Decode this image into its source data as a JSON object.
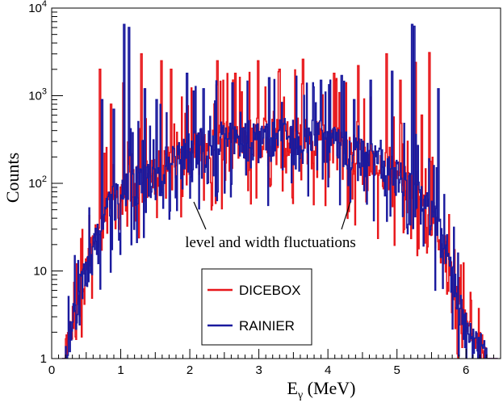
{
  "chart_data": {
    "type": "histogram",
    "xlabel_main": "E",
    "xlabel_sub": "γ",
    "xlabel_unit": " (MeV)",
    "ylabel": "Counts",
    "xlim": [
      0,
      6.5
    ],
    "ylim": [
      1,
      10000
    ],
    "yscale": "log",
    "x_ticks": [
      0,
      1,
      2,
      3,
      4,
      5,
      6
    ],
    "y_ticks": [
      {
        "value": 1,
        "label": "1"
      },
      {
        "value": 10,
        "label": "10"
      },
      {
        "value": 100,
        "base": "10",
        "exp": "2"
      },
      {
        "value": 1000,
        "base": "10",
        "exp": "3"
      },
      {
        "value": 10000,
        "base": "10",
        "exp": "4"
      }
    ],
    "bin_width": 0.01,
    "legend": {
      "placement": "bottom-center",
      "entries": [
        "DICEBOX",
        "RAINIER"
      ]
    },
    "annotation": {
      "text": "level and width fluctuations",
      "arrows_to": [
        [
          2.0,
          70
        ],
        [
          4.3,
          70
        ]
      ]
    },
    "envelope": {
      "x": [
        0.2,
        0.3,
        0.4,
        0.5,
        0.6,
        0.7,
        0.8,
        0.9,
        1.0,
        1.2,
        1.4,
        1.6,
        1.8,
        2.0,
        2.4,
        2.8,
        3.0,
        3.25,
        3.5,
        3.7,
        4.0,
        4.5,
        4.8,
        5.0,
        5.2,
        5.4,
        5.5,
        5.6,
        5.7,
        5.8,
        5.9,
        6.0,
        6.1,
        6.2,
        6.3
      ],
      "y": [
        1,
        2.5,
        5,
        10,
        18,
        30,
        45,
        60,
        70,
        90,
        110,
        150,
        180,
        220,
        300,
        320,
        330,
        320,
        330,
        320,
        300,
        200,
        140,
        110,
        80,
        50,
        40,
        30,
        15,
        8,
        4,
        2,
        1.4,
        1.1,
        1
      ]
    },
    "series": [
      {
        "name": "DICEBOX",
        "color": "#e8161a",
        "seed": 7,
        "spikes": [
          [
            0.7,
            2000
          ],
          [
            0.86,
            800
          ],
          [
            1.04,
            1400
          ],
          [
            1.3,
            3000
          ],
          [
            1.59,
            2500
          ],
          [
            1.73,
            2000
          ],
          [
            2.4,
            2500
          ],
          [
            2.66,
            1800
          ],
          [
            2.99,
            2500
          ],
          [
            3.3,
            2000
          ],
          [
            3.64,
            2600
          ],
          [
            4.09,
            1800
          ],
          [
            4.44,
            2200
          ],
          [
            4.85,
            3000
          ],
          [
            5.05,
            1500
          ],
          [
            5.27,
            2400
          ],
          [
            5.47,
            3100
          ],
          [
            5.36,
            600
          ]
        ]
      },
      {
        "name": "RAINIER",
        "color": "#1a1a9e",
        "seed": 19,
        "spikes": [
          [
            0.73,
            900
          ],
          [
            0.9,
            700
          ],
          [
            1.05,
            6500
          ],
          [
            1.12,
            6000
          ],
          [
            1.35,
            1200
          ],
          [
            1.52,
            900
          ],
          [
            1.96,
            1800
          ],
          [
            2.2,
            1200
          ],
          [
            2.62,
            1400
          ],
          [
            3.15,
            1600
          ],
          [
            3.9,
            1500
          ],
          [
            4.2,
            1700
          ],
          [
            4.38,
            900
          ],
          [
            4.62,
            1500
          ],
          [
            4.93,
            1900
          ],
          [
            5.22,
            6500
          ],
          [
            5.25,
            6200
          ],
          [
            5.6,
            1200
          ]
        ]
      }
    ]
  }
}
